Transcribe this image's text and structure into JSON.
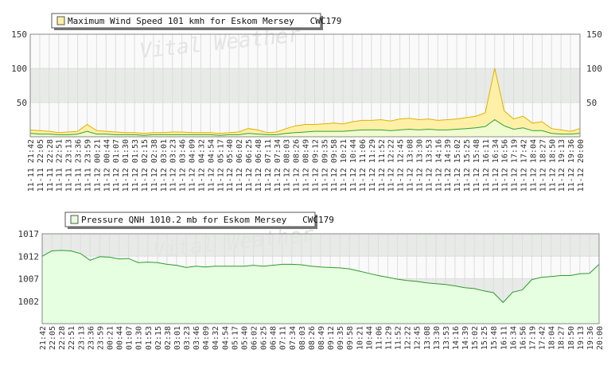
{
  "chart_data": [
    {
      "type": "area",
      "legend": "Maximum Wind Speed 101 kmh for Eskom Mersey   CWC179",
      "legend_placement": "top-left",
      "watermark": "Vital Weather",
      "ylim": [
        0,
        150
      ],
      "yticks": [
        50,
        100,
        150
      ],
      "grid": true,
      "colors": {
        "max_fill": "#fff0a8",
        "max_line": "#e0b000",
        "avg_fill": "#e6ffe0",
        "avg_line": "#33a033",
        "band": "#e8eae8"
      },
      "x": [
        "11-11 21:42",
        "11-11 22:05",
        "11-11 22:28",
        "11-11 22:51",
        "11-11 23:13",
        "11-11 23:36",
        "11-11 23:59",
        "11-12 00:21",
        "11-12 00:44",
        "11-12 01:07",
        "11-12 01:30",
        "11-12 01:53",
        "11-12 02:15",
        "11-12 02:38",
        "11-12 03:01",
        "11-12 03:23",
        "11-12 03:46",
        "11-12 04:09",
        "11-12 04:32",
        "11-12 04:54",
        "11-12 05:17",
        "11-12 05:40",
        "11-12 06:02",
        "11-12 06:25",
        "11-12 06:48",
        "11-12 07:11",
        "11-12 07:34",
        "11-12 08:03",
        "11-12 08:26",
        "11-12 08:49",
        "11-12 09:12",
        "11-12 09:35",
        "11-12 09:58",
        "11-12 10:21",
        "11-12 10:44",
        "11-12 11:06",
        "11-12 11:29",
        "11-12 11:52",
        "11-12 12:22",
        "11-12 12:45",
        "11-12 13:08",
        "11-12 13:30",
        "11-12 13:53",
        "11-12 14:16",
        "11-12 14:39",
        "11-12 15:02",
        "11-12 15:25",
        "11-12 15:48",
        "11-12 16:11",
        "11-12 16:34",
        "11-12 16:56",
        "11-12 17:19",
        "11-12 17:42",
        "11-12 18:04",
        "11-12 18:27",
        "11-12 18:50",
        "11-12 19:13",
        "11-12 19:36",
        "11-12 20:00"
      ],
      "series": [
        {
          "name": "max",
          "values": [
            10,
            9,
            8,
            6,
            7,
            8,
            18,
            9,
            8,
            7,
            6,
            6,
            5,
            6,
            6,
            7,
            7,
            6,
            6,
            6,
            5,
            6,
            7,
            12,
            10,
            6,
            7,
            12,
            16,
            18,
            18,
            19,
            20,
            19,
            22,
            24,
            24,
            25,
            23,
            26,
            27,
            25,
            26,
            24,
            25,
            26,
            28,
            30,
            35,
            100,
            38,
            26,
            30,
            20,
            22,
            12,
            10,
            8,
            12
          ]
        },
        {
          "name": "avg",
          "values": [
            5,
            4,
            4,
            3,
            3,
            4,
            8,
            4,
            4,
            3,
            3,
            3,
            2,
            3,
            3,
            3,
            3,
            3,
            3,
            3,
            2,
            3,
            3,
            5,
            4,
            3,
            3,
            5,
            6,
            7,
            8,
            8,
            8,
            8,
            9,
            10,
            10,
            10,
            9,
            10,
            11,
            10,
            11,
            10,
            10,
            11,
            12,
            13,
            15,
            25,
            16,
            11,
            13,
            9,
            9,
            5,
            4,
            4,
            5
          ]
        }
      ]
    },
    {
      "type": "area",
      "legend": "Pressure QNH 1010.2 mb for Eskom Mersey   CWC179",
      "legend_placement": "top-left",
      "watermark": "Vital Weather",
      "ylim": [
        997,
        1017
      ],
      "yticks": [
        1002,
        1007,
        1012,
        1017
      ],
      "grid": true,
      "colors": {
        "fill": "#e6ffe0",
        "line": "#2e9a2e",
        "band": "#e8eae8"
      },
      "x": [
        "21:42",
        "22:05",
        "22:28",
        "22:51",
        "23:13",
        "23:36",
        "23:59",
        "00:21",
        "00:44",
        "01:07",
        "01:30",
        "01:53",
        "02:15",
        "02:38",
        "03:01",
        "03:23",
        "03:46",
        "04:09",
        "04:32",
        "04:54",
        "05:17",
        "05:40",
        "06:02",
        "06:25",
        "06:48",
        "07:11",
        "07:34",
        "08:03",
        "08:26",
        "08:49",
        "09:12",
        "09:35",
        "09:58",
        "10:21",
        "10:44",
        "11:06",
        "11:29",
        "11:52",
        "12:22",
        "12:45",
        "13:08",
        "13:30",
        "13:53",
        "14:16",
        "14:39",
        "15:02",
        "15:25",
        "15:48",
        "16:11",
        "16:34",
        "16:56",
        "17:19",
        "17:42",
        "18:04",
        "18:27",
        "18:50",
        "19:13",
        "19:36",
        "20:00"
      ],
      "values": [
        1012.0,
        1013.2,
        1013.3,
        1013.2,
        1012.6,
        1011.1,
        1011.9,
        1011.8,
        1011.4,
        1011.5,
        1010.6,
        1010.7,
        1010.6,
        1010.2,
        1010.0,
        1009.5,
        1009.8,
        1009.6,
        1009.8,
        1009.8,
        1009.8,
        1009.8,
        1010.0,
        1009.8,
        1010.0,
        1010.2,
        1010.2,
        1010.1,
        1009.8,
        1009.6,
        1009.5,
        1009.4,
        1009.2,
        1008.7,
        1008.2,
        1007.7,
        1007.3,
        1006.9,
        1006.6,
        1006.4,
        1006.1,
        1005.9,
        1005.7,
        1005.4,
        1005.0,
        1004.8,
        1004.3,
        1003.9,
        1001.7,
        1004.0,
        1004.5,
        1006.8,
        1007.3,
        1007.5,
        1007.7,
        1007.7,
        1008.1,
        1008.2,
        1010.2
      ]
    }
  ]
}
